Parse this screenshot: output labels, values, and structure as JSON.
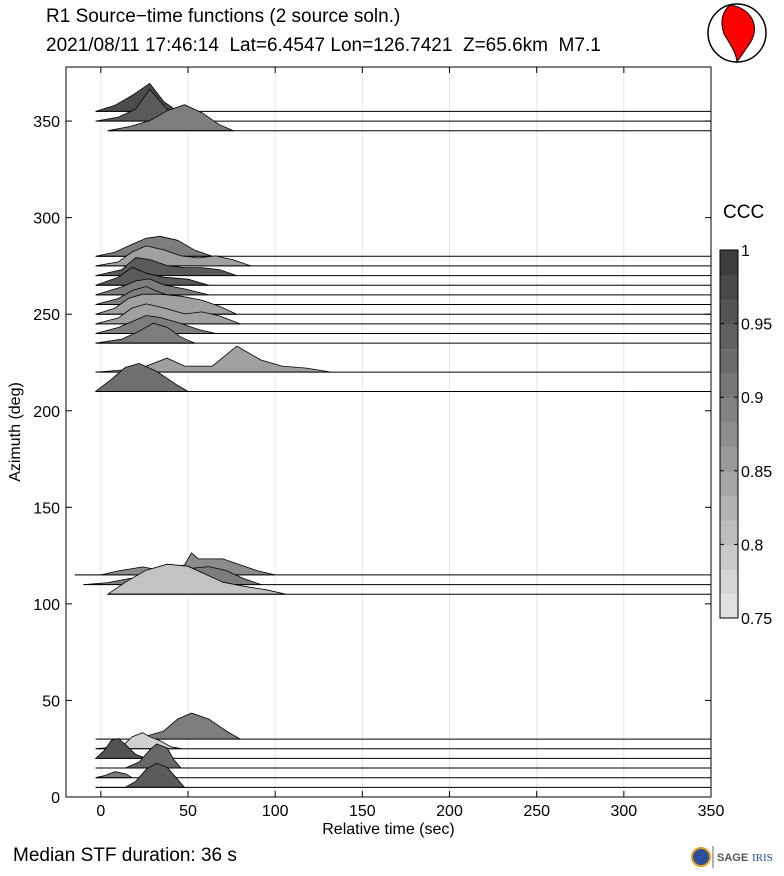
{
  "title": "R1 Source−time functions (2 source soln.)",
  "subtitle": "2021/08/11 17:46:14  Lat=6.4547 Lon=126.7421  Z=65.6km  M7.1",
  "footer": "Median STF duration: 36 s",
  "logo_text": "SAGE",
  "logo_text2": "IRIS",
  "chart_data": {
    "type": "area",
    "xlabel": "Relative time (sec)",
    "ylabel": "Azimuth (deg)",
    "xlim": [
      -20,
      350
    ],
    "ylim": [
      0,
      378
    ],
    "xticks": [
      0,
      50,
      100,
      150,
      200,
      250,
      300,
      350
    ],
    "yticks": [
      0,
      50,
      100,
      150,
      200,
      250,
      300,
      350
    ],
    "grid": "vertical",
    "colorbar": {
      "label": "CCC",
      "min": 0.75,
      "max": 1,
      "ticks": [
        "0.75",
        "0.8",
        "0.85",
        "0.9",
        "0.95",
        "1"
      ]
    },
    "traces": [
      {
        "azimuth": 355,
        "ccc": 0.97,
        "points": [
          [
            -3,
            0
          ],
          [
            8,
            3
          ],
          [
            18,
            8
          ],
          [
            28,
            14
          ],
          [
            36,
            5
          ],
          [
            44,
            0
          ]
        ]
      },
      {
        "azimuth": 350,
        "ccc": 0.95,
        "points": [
          [
            -3,
            0
          ],
          [
            10,
            2
          ],
          [
            20,
            6
          ],
          [
            28,
            16
          ],
          [
            38,
            6
          ],
          [
            48,
            0
          ]
        ]
      },
      {
        "azimuth": 345,
        "ccc": 0.9,
        "points": [
          [
            4,
            0
          ],
          [
            16,
            2
          ],
          [
            28,
            5
          ],
          [
            38,
            10
          ],
          [
            48,
            13
          ],
          [
            58,
            9
          ],
          [
            68,
            3
          ],
          [
            76,
            0
          ]
        ]
      },
      {
        "azimuth": 280,
        "ccc": 0.9,
        "points": [
          [
            -3,
            0
          ],
          [
            8,
            2
          ],
          [
            18,
            6
          ],
          [
            26,
            9
          ],
          [
            34,
            10
          ],
          [
            44,
            8
          ],
          [
            54,
            3
          ],
          [
            64,
            0
          ]
        ]
      },
      {
        "azimuth": 275,
        "ccc": 0.85,
        "points": [
          [
            -3,
            0
          ],
          [
            10,
            2
          ],
          [
            18,
            7
          ],
          [
            26,
            10
          ],
          [
            36,
            8
          ],
          [
            46,
            5
          ],
          [
            56,
            4
          ],
          [
            66,
            5
          ],
          [
            76,
            3
          ],
          [
            86,
            0
          ]
        ]
      },
      {
        "azimuth": 270,
        "ccc": 0.95,
        "points": [
          [
            -3,
            0
          ],
          [
            12,
            3
          ],
          [
            20,
            9
          ],
          [
            28,
            8
          ],
          [
            38,
            5
          ],
          [
            48,
            4
          ],
          [
            58,
            4
          ],
          [
            68,
            3
          ],
          [
            78,
            0
          ]
        ]
      },
      {
        "azimuth": 265,
        "ccc": 0.95,
        "points": [
          [
            -3,
            0
          ],
          [
            10,
            4
          ],
          [
            18,
            9
          ],
          [
            26,
            6
          ],
          [
            36,
            4
          ],
          [
            50,
            3
          ],
          [
            62,
            0
          ]
        ]
      },
      {
        "azimuth": 260,
        "ccc": 0.9,
        "points": [
          [
            -3,
            0
          ],
          [
            12,
            4
          ],
          [
            20,
            7
          ],
          [
            28,
            8
          ],
          [
            36,
            5
          ],
          [
            48,
            3
          ],
          [
            62,
            0
          ]
        ]
      },
      {
        "azimuth": 255,
        "ccc": 0.9,
        "points": [
          [
            -3,
            0
          ],
          [
            10,
            3
          ],
          [
            18,
            7
          ],
          [
            26,
            9
          ],
          [
            34,
            6
          ],
          [
            44,
            3
          ],
          [
            56,
            0
          ]
        ]
      },
      {
        "azimuth": 250,
        "ccc": 0.85,
        "points": [
          [
            -3,
            0
          ],
          [
            8,
            3
          ],
          [
            16,
            8
          ],
          [
            24,
            10
          ],
          [
            34,
            10
          ],
          [
            46,
            9
          ],
          [
            58,
            7
          ],
          [
            68,
            4
          ],
          [
            78,
            0
          ]
        ]
      },
      {
        "azimuth": 245,
        "ccc": 0.85,
        "points": [
          [
            -3,
            0
          ],
          [
            10,
            3
          ],
          [
            18,
            8
          ],
          [
            26,
            10
          ],
          [
            36,
            8
          ],
          [
            48,
            5
          ],
          [
            58,
            6
          ],
          [
            68,
            4
          ],
          [
            80,
            0
          ]
        ]
      },
      {
        "azimuth": 240,
        "ccc": 0.9,
        "points": [
          [
            -3,
            0
          ],
          [
            10,
            3
          ],
          [
            18,
            6
          ],
          [
            26,
            9
          ],
          [
            34,
            8
          ],
          [
            46,
            5
          ],
          [
            56,
            2
          ],
          [
            66,
            0
          ]
        ]
      },
      {
        "azimuth": 235,
        "ccc": 0.9,
        "points": [
          [
            -3,
            0
          ],
          [
            12,
            2
          ],
          [
            22,
            6
          ],
          [
            30,
            10
          ],
          [
            38,
            8
          ],
          [
            46,
            3
          ],
          [
            54,
            0
          ]
        ]
      },
      {
        "azimuth": 220,
        "ccc": 0.85,
        "points": [
          [
            -3,
            0
          ],
          [
            12,
            1
          ],
          [
            26,
            3
          ],
          [
            38,
            7
          ],
          [
            48,
            3
          ],
          [
            64,
            3
          ],
          [
            78,
            13
          ],
          [
            92,
            6
          ],
          [
            104,
            3
          ],
          [
            118,
            2
          ],
          [
            132,
            0
          ]
        ]
      },
      {
        "azimuth": 210,
        "ccc": 0.92,
        "points": [
          [
            -3,
            0
          ],
          [
            6,
            6
          ],
          [
            14,
            12
          ],
          [
            22,
            14
          ],
          [
            32,
            10
          ],
          [
            44,
            3
          ],
          [
            50,
            0
          ]
        ]
      },
      {
        "azimuth": 115,
        "ccc": 0.88,
        "points": [
          [
            -15,
            0
          ],
          [
            0,
            0
          ],
          [
            10,
            2
          ],
          [
            24,
            4
          ],
          [
            36,
            2
          ],
          [
            48,
            5
          ],
          [
            52,
            11
          ],
          [
            56,
            8
          ],
          [
            70,
            8
          ],
          [
            80,
            5
          ],
          [
            90,
            2
          ],
          [
            100,
            0
          ]
        ]
      },
      {
        "azimuth": 110,
        "ccc": 0.9,
        "points": [
          [
            -10,
            0
          ],
          [
            4,
            1
          ],
          [
            16,
            3
          ],
          [
            28,
            4
          ],
          [
            40,
            6
          ],
          [
            50,
            8
          ],
          [
            62,
            9
          ],
          [
            72,
            7
          ],
          [
            82,
            3
          ],
          [
            92,
            0
          ]
        ]
      },
      {
        "azimuth": 105,
        "ccc": 0.8,
        "points": [
          [
            4,
            0
          ],
          [
            14,
            6
          ],
          [
            26,
            12
          ],
          [
            38,
            15
          ],
          [
            50,
            14
          ],
          [
            60,
            10
          ],
          [
            70,
            6
          ],
          [
            82,
            4
          ],
          [
            96,
            2
          ],
          [
            106,
            0
          ]
        ]
      },
      {
        "azimuth": 30,
        "ccc": 0.9,
        "points": [
          [
            -3,
            0
          ],
          [
            20,
            0
          ],
          [
            28,
            2
          ],
          [
            36,
            4
          ],
          [
            44,
            10
          ],
          [
            52,
            13
          ],
          [
            62,
            10
          ],
          [
            72,
            4
          ],
          [
            80,
            0
          ]
        ]
      },
      {
        "azimuth": 25,
        "ccc": 0.78,
        "points": [
          [
            -3,
            0
          ],
          [
            12,
            1
          ],
          [
            18,
            6
          ],
          [
            24,
            8
          ],
          [
            28,
            6
          ],
          [
            34,
            4
          ],
          [
            40,
            1
          ],
          [
            46,
            0
          ]
        ]
      },
      {
        "azimuth": 20,
        "ccc": 0.96,
        "points": [
          [
            -3,
            0
          ],
          [
            2,
            4
          ],
          [
            6,
            9
          ],
          [
            10,
            10
          ],
          [
            14,
            7
          ],
          [
            20,
            2
          ],
          [
            26,
            0
          ]
        ]
      },
      {
        "azimuth": 15,
        "ccc": 0.93,
        "points": [
          [
            -3,
            0
          ],
          [
            14,
            0
          ],
          [
            22,
            3
          ],
          [
            28,
            9
          ],
          [
            32,
            12
          ],
          [
            38,
            10
          ],
          [
            42,
            4
          ],
          [
            46,
            0
          ]
        ]
      },
      {
        "azimuth": 10,
        "ccc": 0.9,
        "points": [
          [
            -3,
            0
          ],
          [
            2,
            1
          ],
          [
            8,
            3
          ],
          [
            14,
            2
          ],
          [
            18,
            0
          ]
        ]
      },
      {
        "azimuth": 5,
        "ccc": 0.95,
        "points": [
          [
            -3,
            0
          ],
          [
            14,
            0
          ],
          [
            20,
            3
          ],
          [
            26,
            9
          ],
          [
            32,
            12
          ],
          [
            38,
            10
          ],
          [
            44,
            4
          ],
          [
            48,
            0
          ]
        ]
      }
    ]
  }
}
